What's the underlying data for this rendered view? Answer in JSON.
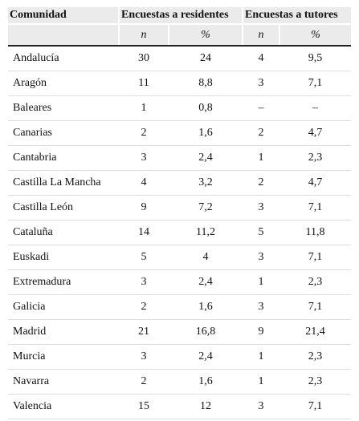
{
  "table": {
    "header": [
      "Comunidad",
      "Encuestas a residentes",
      "Encuestas a tutores"
    ],
    "subheader": [
      "n",
      "%",
      "n",
      "%"
    ],
    "rows": [
      [
        "Andalucía",
        "30",
        "24",
        "4",
        "9,5"
      ],
      [
        "Aragón",
        "11",
        "8,8",
        "3",
        "7,1"
      ],
      [
        "Baleares",
        "1",
        "0,8",
        "–",
        "–"
      ],
      [
        "Canarias",
        "2",
        "1,6",
        "2",
        "4,7"
      ],
      [
        "Cantabria",
        "3",
        "2,4",
        "1",
        "2,3"
      ],
      [
        "Castilla La Mancha",
        "4",
        "3,2",
        "2",
        "4,7"
      ],
      [
        "Castilla León",
        "9",
        "7,2",
        "3",
        "7,1"
      ],
      [
        "Cataluña",
        "14",
        "11,2",
        "5",
        "11,8"
      ],
      [
        "Euskadi",
        "5",
        "4",
        "3",
        "7,1"
      ],
      [
        "Extremadura",
        "3",
        "2,4",
        "1",
        "2,3"
      ],
      [
        "Galicia",
        "2",
        "1,6",
        "3",
        "7,1"
      ],
      [
        "Madrid",
        "21",
        "16,8",
        "9",
        "21,4"
      ],
      [
        "Murcia",
        "3",
        "2,4",
        "1",
        "2,3"
      ],
      [
        "Navarra",
        "2",
        "1,6",
        "1",
        "2,3"
      ],
      [
        "Valencia",
        "15",
        "12",
        "3",
        "7,1"
      ]
    ]
  }
}
